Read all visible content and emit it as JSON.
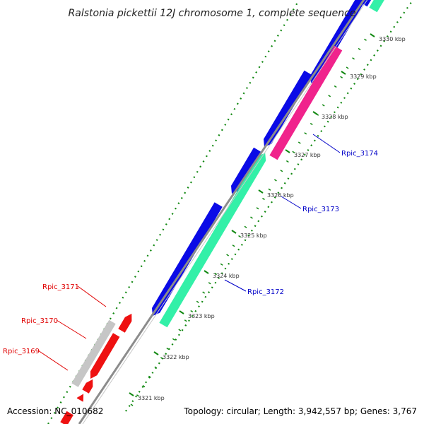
{
  "title": "Ralstonia pickettii 12J chromosome 1, complete sequence",
  "footer": {
    "accession": "Accession: NC_010682",
    "summary": "Topology: circular; Length: 3,942,557 bp; Genes: 3,767"
  },
  "scale_labels": [
    "3321 kbp",
    "3322 kbp",
    "3323 kbp",
    "3324 kbp",
    "3325 kbp",
    "3326 kbp",
    "3327 kbp",
    "3328 kbp",
    "3329 kbp",
    "3330 kbp"
  ],
  "gene_labels": [
    {
      "text": "Rpic_3169",
      "color": "#e00000"
    },
    {
      "text": "Rpic_3170",
      "color": "#e00000"
    },
    {
      "text": "Rpic_3171",
      "color": "#e00000"
    },
    {
      "text": "Rpic_3172",
      "color": "#0000c8"
    },
    {
      "text": "Rpic_3173",
      "color": "#0000c8"
    },
    {
      "text": "Rpic_3174",
      "color": "#0000c8"
    }
  ],
  "colors": {
    "forward_cds": "#0a0ae6",
    "forward_rna": "#33f0a8",
    "forward_pink": "#f0238c",
    "reverse_cds": "#ee1111",
    "reverse_gray": "#c6c6c6",
    "backbone": "#8c8c8c",
    "tick": "#118811"
  }
}
